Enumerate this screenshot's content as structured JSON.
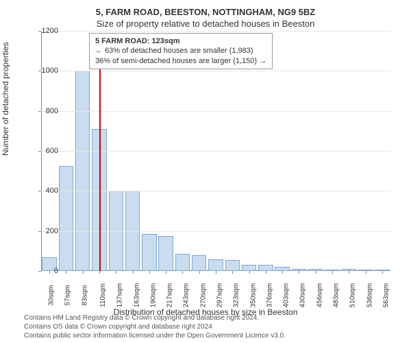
{
  "chart": {
    "type": "histogram",
    "title_line1": "5, FARM ROAD, BEESTON, NOTTINGHAM, NG9 5BZ",
    "title_line2": "Size of property relative to detached houses in Beeston",
    "y_axis_label": "Number of detached properties",
    "x_axis_label": "Distribution of detached houses by size in Beeston",
    "ylim": [
      0,
      1200
    ],
    "ytick_step": 200,
    "y_ticks": [
      0,
      200,
      400,
      600,
      800,
      1000,
      1200
    ],
    "x_tick_labels": [
      "30sqm",
      "57sqm",
      "83sqm",
      "110sqm",
      "137sqm",
      "163sqm",
      "190sqm",
      "217sqm",
      "243sqm",
      "270sqm",
      "297sqm",
      "323sqm",
      "350sqm",
      "376sqm",
      "403sqm",
      "430sqm",
      "456sqm",
      "483sqm",
      "510sqm",
      "536sqm",
      "563sqm"
    ],
    "bar_values": [
      70,
      525,
      1000,
      710,
      400,
      400,
      185,
      175,
      85,
      80,
      60,
      55,
      30,
      30,
      20,
      12,
      10,
      8,
      12,
      5,
      5
    ],
    "bar_fill_color": "#c9dcf0",
    "bar_border_color": "#7fa8d4",
    "marker_color": "#cc0000",
    "marker_position_index": 3.5,
    "background_color": "#ffffff",
    "grid_color": "#e8e8e8",
    "axis_color": "#888888",
    "annotation": {
      "line1": "5 FARM ROAD: 123sqm",
      "line2": "← 63% of detached houses are smaller (1,983)",
      "line3": "36% of semi-detached houses are larger (1,150) →"
    },
    "title_fontsize": 13,
    "label_fontsize": 12,
    "tick_fontsize": 11,
    "annotation_fontsize": 11,
    "bar_width_ratio": 0.88
  },
  "footer": {
    "line1": "Contains HM Land Registry data © Crown copyright and database right 2024.",
    "line2": "Contains OS data © Crown copyright and database right 2024",
    "line3": "Contains public sector information licensed under the Open Government Licence v3.0."
  }
}
